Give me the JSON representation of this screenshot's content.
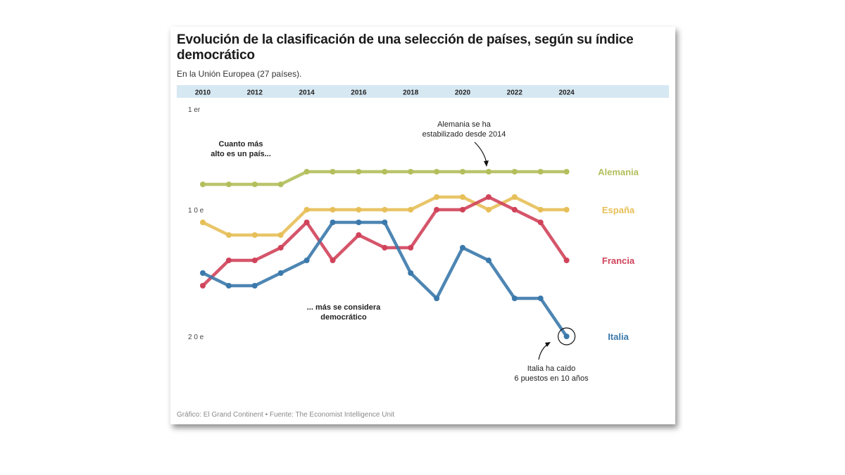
{
  "title": "Evolución de la clasificación de una selección de países, según su índice democrático",
  "subtitle": "En la Unión Europea (27 países).",
  "source": "Gráfico: El Grand Continent • Fuente: The Economist Intelligence Unit",
  "chart_data": {
    "type": "line",
    "title": "Evolución de la clasificación de una selección de países, según su índice democrático",
    "subtitle": "En la Unión Europea (27 países).",
    "xlabel": "",
    "ylabel": "",
    "x": [
      2010,
      2011,
      2012,
      2013,
      2014,
      2015,
      2016,
      2017,
      2018,
      2019,
      2020,
      2021,
      2022,
      2023,
      2024
    ],
    "x_tick_labels": [
      "2010",
      "2012",
      "2014",
      "2016",
      "2018",
      "2020",
      "2022",
      "2024"
    ],
    "y_tick_labels": [
      {
        "rank": 1,
        "label": "1 er"
      },
      {
        "rank": 10,
        "label": "1 0 e"
      },
      {
        "rank": 20,
        "label": "2 0 e"
      }
    ],
    "y_inverted": true,
    "ylim": [
      1,
      20
    ],
    "grid": false,
    "legend": "direct labels at right",
    "series": [
      {
        "name": "Alemania",
        "color": "#b3bf5c",
        "values": [
          8,
          8,
          8,
          8,
          7,
          7,
          7,
          7,
          7,
          7,
          7,
          7,
          7,
          7,
          7
        ]
      },
      {
        "name": "España",
        "color": "#e7bf58",
        "values": [
          11,
          12,
          12,
          12,
          10,
          10,
          10,
          10,
          10,
          9,
          9,
          10,
          9,
          10,
          10
        ]
      },
      {
        "name": "Francia",
        "color": "#d0435a",
        "values": [
          16,
          14,
          14,
          13,
          11,
          14,
          12,
          13,
          13,
          10,
          10,
          9,
          10,
          11,
          14
        ]
      },
      {
        "name": "Italia",
        "color": "#3b79ab",
        "values": [
          15,
          16,
          16,
          15,
          14,
          11,
          11,
          11,
          15,
          17,
          13,
          14,
          17,
          17,
          20
        ]
      }
    ],
    "annotations": [
      {
        "text": [
          "Cuanto más",
          "alto es un país..."
        ],
        "style": "bold"
      },
      {
        "text": [
          "... más se considera",
          "democrático"
        ],
        "style": "bold"
      },
      {
        "text": [
          "Alemania se ha",
          "estabilizado desde 2014"
        ],
        "target": {
          "series": "Alemania",
          "x": 2021
        }
      },
      {
        "text": [
          "Italia ha caído",
          "6 puestos en 10 años"
        ],
        "target": {
          "series": "Italia",
          "x": 2024
        },
        "highlight": "circle"
      }
    ]
  }
}
